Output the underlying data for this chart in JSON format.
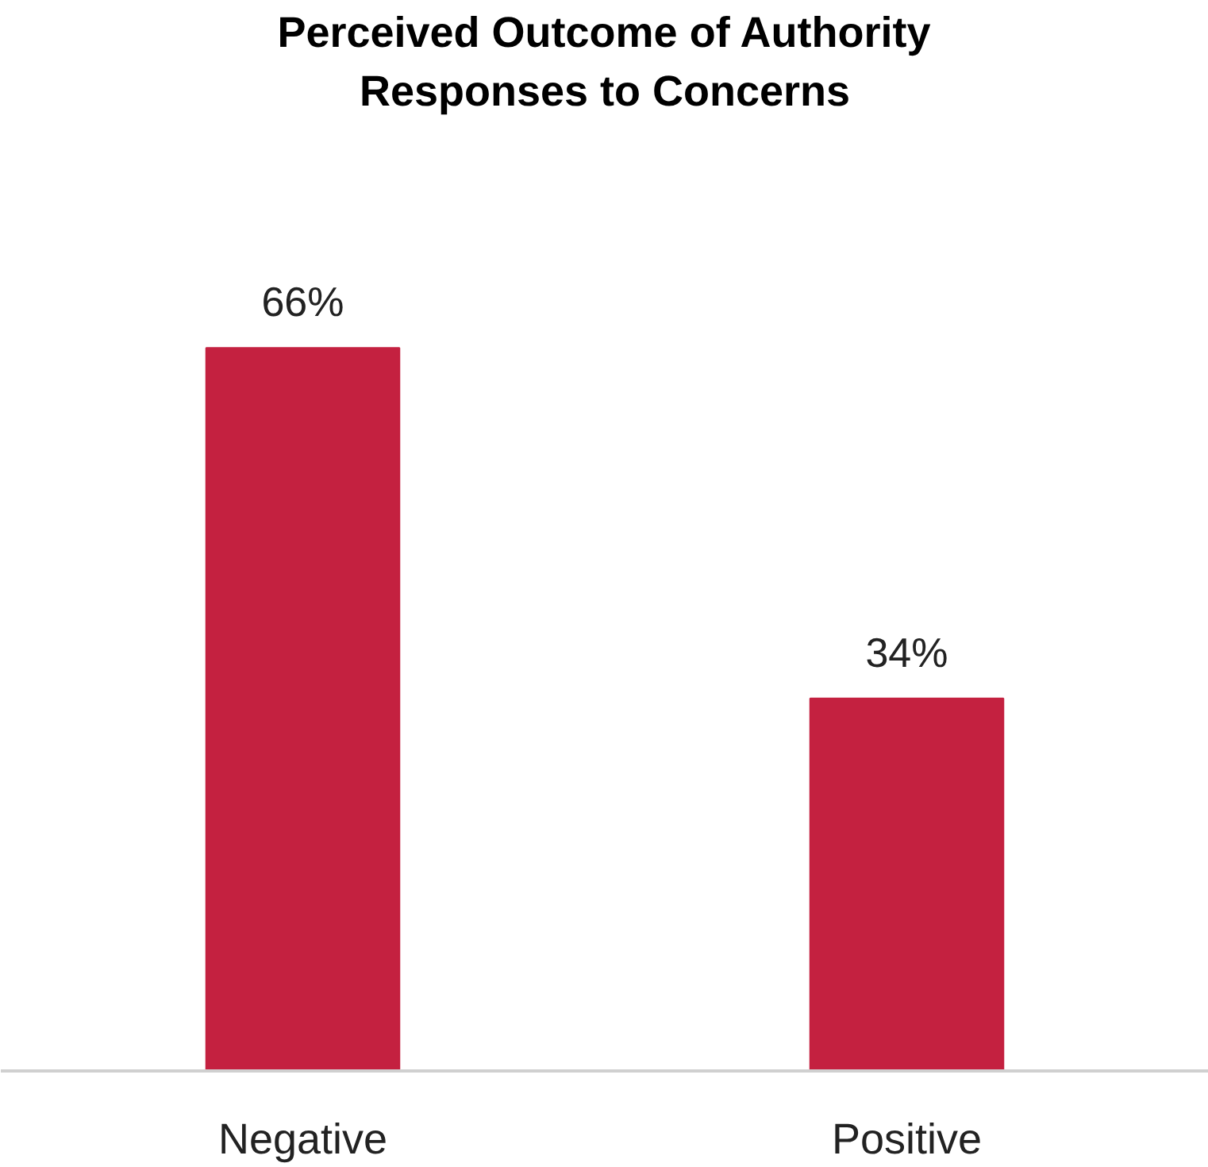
{
  "chart_data": {
    "type": "bar",
    "title": "Perceived Outcome of Authority Responses to Concerns",
    "categories": [
      "Negative",
      "Positive"
    ],
    "values": [
      66,
      34
    ],
    "value_labels": [
      "66%",
      "34%"
    ],
    "color": "#c42140"
  }
}
